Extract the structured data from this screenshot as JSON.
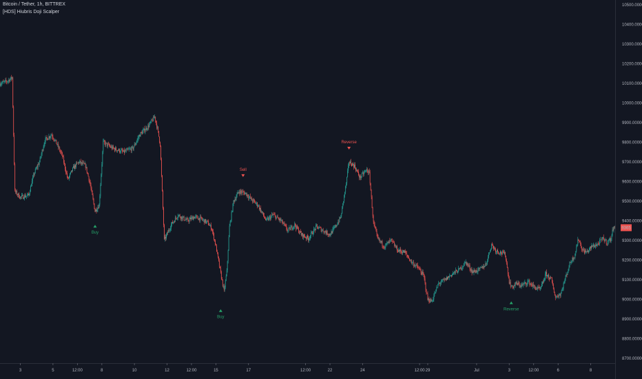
{
  "header": {
    "symbol": "Bitcoin / Tether, 1h, BITTREX",
    "indicator": "[HDS] Hiubris Doji Scalper"
  },
  "colors": {
    "background": "#131722",
    "up": "#26a69a",
    "down": "#ef5350",
    "buy": "#26a269",
    "sell": "#ef5350",
    "axis_text": "#b2b5be",
    "price_tag": "#ef5350"
  },
  "chart_data": {
    "type": "candlestick",
    "y_axis": {
      "position": "right",
      "ylim": [
        8675,
        10525
      ],
      "ticks": [
        "8700.000000",
        "8800.000000",
        "8900.000000",
        "9000.000000",
        "9100.000000",
        "9200.000000",
        "9300.000000",
        "9400.000000",
        "9500.000000",
        "9600.000000",
        "9700.000000",
        "9800.000000",
        "9900.000000",
        "10000.000000",
        "10100.000000",
        "10200.000000",
        "10300.000000",
        "10400.000000",
        "10500.000000"
      ],
      "tick_values": [
        8700,
        8800,
        8900,
        9000,
        9100,
        9200,
        9300,
        9400,
        9500,
        9600,
        9700,
        9800,
        9900,
        10000,
        10100,
        10200,
        10300,
        10400,
        10500
      ]
    },
    "x_axis": {
      "ticks": [
        "3",
        "5",
        "12:00",
        "8",
        "10",
        "12",
        "12:00",
        "15",
        "17",
        "12:00",
        "22",
        "24",
        "12:00",
        "29",
        "Jul",
        "3",
        "12:00",
        "6",
        "8"
      ],
      "tick_hour_index": [
        30,
        78,
        114,
        150,
        198,
        246,
        282,
        318,
        366,
        450,
        486,
        534,
        618,
        630,
        702,
        750,
        786,
        822,
        870
      ]
    },
    "last_price": {
      "value": 9365,
      "label": "9365"
    },
    "price_path": [
      [
        0,
        10100
      ],
      [
        10,
        10110
      ],
      [
        18,
        10130
      ],
      [
        22,
        9550
      ],
      [
        30,
        9520
      ],
      [
        42,
        9530
      ],
      [
        50,
        9640
      ],
      [
        58,
        9700
      ],
      [
        66,
        9810
      ],
      [
        76,
        9840
      ],
      [
        84,
        9790
      ],
      [
        92,
        9730
      ],
      [
        100,
        9610
      ],
      [
        108,
        9670
      ],
      [
        116,
        9700
      ],
      [
        126,
        9680
      ],
      [
        132,
        9600
      ],
      [
        140,
        9450
      ],
      [
        146,
        9480
      ],
      [
        152,
        9800
      ],
      [
        166,
        9770
      ],
      [
        182,
        9750
      ],
      [
        196,
        9770
      ],
      [
        206,
        9840
      ],
      [
        218,
        9880
      ],
      [
        228,
        9930
      ],
      [
        232,
        9870
      ],
      [
        236,
        9790
      ],
      [
        242,
        9300
      ],
      [
        252,
        9380
      ],
      [
        262,
        9430
      ],
      [
        276,
        9400
      ],
      [
        286,
        9420
      ],
      [
        296,
        9410
      ],
      [
        306,
        9390
      ],
      [
        312,
        9360
      ],
      [
        318,
        9270
      ],
      [
        324,
        9150
      ],
      [
        330,
        9040
      ],
      [
        334,
        9140
      ],
      [
        338,
        9370
      ],
      [
        344,
        9500
      ],
      [
        352,
        9550
      ],
      [
        362,
        9540
      ],
      [
        370,
        9510
      ],
      [
        380,
        9480
      ],
      [
        392,
        9400
      ],
      [
        402,
        9430
      ],
      [
        414,
        9400
      ],
      [
        424,
        9350
      ],
      [
        434,
        9380
      ],
      [
        444,
        9330
      ],
      [
        454,
        9310
      ],
      [
        466,
        9370
      ],
      [
        476,
        9350
      ],
      [
        486,
        9330
      ],
      [
        494,
        9370
      ],
      [
        502,
        9420
      ],
      [
        510,
        9590
      ],
      [
        514,
        9700
      ],
      [
        522,
        9680
      ],
      [
        530,
        9620
      ],
      [
        540,
        9660
      ],
      [
        544,
        9640
      ],
      [
        550,
        9390
      ],
      [
        556,
        9310
      ],
      [
        566,
        9270
      ],
      [
        576,
        9300
      ],
      [
        586,
        9250
      ],
      [
        596,
        9240
      ],
      [
        606,
        9190
      ],
      [
        616,
        9160
      ],
      [
        624,
        9120
      ],
      [
        630,
        9000
      ],
      [
        636,
        8990
      ],
      [
        646,
        9080
      ],
      [
        656,
        9100
      ],
      [
        666,
        9130
      ],
      [
        676,
        9150
      ],
      [
        686,
        9190
      ],
      [
        696,
        9140
      ],
      [
        706,
        9150
      ],
      [
        716,
        9180
      ],
      [
        724,
        9280
      ],
      [
        730,
        9250
      ],
      [
        736,
        9240
      ],
      [
        744,
        9230
      ],
      [
        750,
        9090
      ],
      [
        754,
        9060
      ],
      [
        760,
        9080
      ],
      [
        768,
        9070
      ],
      [
        778,
        9090
      ],
      [
        788,
        9060
      ],
      [
        796,
        9050
      ],
      [
        804,
        9130
      ],
      [
        812,
        9100
      ],
      [
        818,
        9010
      ],
      [
        826,
        9030
      ],
      [
        832,
        9100
      ],
      [
        840,
        9190
      ],
      [
        846,
        9220
      ],
      [
        852,
        9310
      ],
      [
        858,
        9250
      ],
      [
        864,
        9240
      ],
      [
        872,
        9270
      ],
      [
        880,
        9280
      ],
      [
        888,
        9310
      ],
      [
        894,
        9290
      ],
      [
        900,
        9310
      ],
      [
        904,
        9380
      ],
      [
        906,
        9365
      ]
    ],
    "signals": [
      {
        "label": "Buy",
        "type": "buy",
        "hour": 140,
        "price": 9450
      },
      {
        "label": "Buy",
        "type": "buy",
        "hour": 325,
        "price": 9020
      },
      {
        "label": "Sell",
        "type": "sell",
        "hour": 358,
        "price": 9560
      },
      {
        "label": "Reverse",
        "type": "sell",
        "hour": 514,
        "price": 9700
      },
      {
        "label": "Reverse",
        "type": "buy",
        "hour": 753,
        "price": 9060
      }
    ]
  }
}
